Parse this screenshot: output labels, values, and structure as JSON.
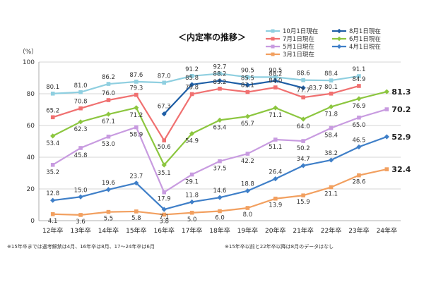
{
  "chart_data": {
    "type": "line",
    "title": "＜内定率の推移＞",
    "ylabel": "（%）",
    "ylim": [
      0,
      100
    ],
    "yticks": [
      0,
      20,
      40,
      60,
      80,
      100
    ],
    "grid": true,
    "legend_position": "top-right",
    "categories": [
      "12年卒",
      "13年卒",
      "14年卒",
      "15年卒",
      "16年卒",
      "17年卒",
      "18年卒",
      "19年卒",
      "20年卒",
      "21年卒",
      "22年卒",
      "23年卒",
      "24年卒"
    ],
    "series": [
      {
        "name": "10月1日現在",
        "color": "#8fcfe0",
        "marker": "square",
        "values": [
          80.1,
          81.0,
          86.2,
          87.6,
          87.0,
          91.2,
          92.7,
          90.5,
          90.5,
          88.6,
          88.4,
          91.1,
          null
        ],
        "labels": [
          "80.1",
          "81.0",
          "86.2",
          "87.6",
          "87.0",
          "91.2",
          "92.7",
          "90.5",
          "90.5",
          "88.6",
          "88.4",
          "91.1",
          ""
        ]
      },
      {
        "name": "8月1日現在",
        "color": "#1f5fa6",
        "marker": "diamond",
        "values": [
          null,
          null,
          null,
          null,
          67.3,
          85.8,
          88.2,
          85.5,
          88.2,
          83.7,
          null,
          null,
          null
        ],
        "labels": [
          "",
          "",
          "",
          "",
          "67.3",
          "85.8",
          "88.2",
          "85.5",
          "88.2",
          "83.7",
          "",
          "",
          ""
        ]
      },
      {
        "name": "7月1日現在",
        "color": "#f07070",
        "marker": "square",
        "values": [
          65.2,
          70.8,
          76.0,
          79.3,
          50.6,
          79.8,
          83.2,
          81.1,
          84.0,
          77.7,
          80.1,
          84.9,
          null
        ],
        "labels": [
          "65.2",
          "70.8",
          "76.0",
          "79.3",
          "50.6",
          "79.8",
          "83.2",
          "81.1",
          "84.0",
          "77.7",
          "80.1",
          "84.9",
          ""
        ]
      },
      {
        "name": "6月1日現在",
        "color": "#8cc63f",
        "marker": "diamond",
        "values": [
          53.4,
          62.3,
          67.1,
          71.2,
          35.1,
          54.9,
          63.4,
          65.7,
          71.1,
          64.0,
          71.8,
          76.9,
          81.3
        ],
        "labels": [
          "53.4",
          "62.3",
          "67.1",
          "71.2",
          "35.1",
          "54.9",
          "63.4",
          "65.7",
          "71.1",
          "64.0",
          "71.8",
          "76.9",
          "81.3"
        ]
      },
      {
        "name": "5月1日現在",
        "color": "#c89be0",
        "marker": "square",
        "values": [
          35.2,
          45.8,
          53.0,
          58.9,
          17.9,
          29.1,
          37.5,
          42.2,
          51.1,
          50.2,
          58.4,
          65.0,
          70.2
        ],
        "labels": [
          "35.2",
          "45.8",
          "53.0",
          "58.9",
          "17.9",
          "29.1",
          "37.5",
          "42.2",
          "51.1",
          "50.2",
          "58.4",
          "65.0",
          "70.2"
        ]
      },
      {
        "name": "4月1日現在",
        "color": "#3f7fc8",
        "marker": "diamond",
        "values": [
          12.8,
          15.0,
          19.6,
          23.7,
          7.1,
          11.8,
          14.6,
          18.8,
          26.4,
          34.7,
          38.2,
          46.5,
          52.9
        ],
        "labels": [
          "12.8",
          "15.0",
          "19.6",
          "23.7",
          "7.1",
          "11.8",
          "14.6",
          "18.8",
          "26.4",
          "34.7",
          "38.2",
          "46.5",
          "52.9"
        ]
      },
      {
        "name": "3月1日現在",
        "color": "#f2a060",
        "marker": "square",
        "values": [
          4.1,
          3.6,
          5.5,
          5.8,
          3.8,
          5.0,
          6.0,
          8.0,
          13.9,
          15.9,
          21.1,
          28.6,
          32.4
        ],
        "labels": [
          "4.1",
          "3.6",
          "5.5",
          "5.8",
          "3.8",
          "5.0",
          "6.0",
          "8.0",
          "13.9",
          "15.9",
          "21.1",
          "28.6",
          "32.4"
        ]
      }
    ],
    "notes": [
      "※15年卒までは選考解禁は4月、16年卒は8月、17～24年卒は6月",
      "※15年卒以前と22年卒以降は8月のデータはなし"
    ]
  }
}
